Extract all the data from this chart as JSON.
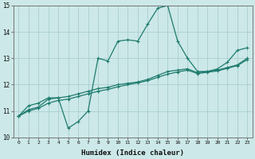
{
  "xlabel": "Humidex (Indice chaleur)",
  "background_color": "#cce8e8",
  "grid_color": "#aacece",
  "line_color": "#1e7b6e",
  "xlim": [
    -0.5,
    23.5
  ],
  "ylim": [
    10,
    15
  ],
  "xticks": [
    0,
    1,
    2,
    3,
    4,
    5,
    6,
    7,
    8,
    9,
    10,
    11,
    12,
    13,
    14,
    15,
    16,
    17,
    18,
    19,
    20,
    21,
    22,
    23
  ],
  "yticks": [
    10,
    11,
    12,
    13,
    14,
    15
  ],
  "curve1_x": [
    0,
    1,
    2,
    3,
    4,
    5,
    6,
    7,
    8,
    9,
    10,
    11,
    12,
    13,
    14,
    15,
    16,
    17,
    18,
    19,
    20,
    21,
    22,
    23
  ],
  "curve1_y": [
    10.8,
    11.2,
    11.3,
    11.5,
    11.5,
    10.35,
    10.6,
    11.0,
    13.0,
    12.9,
    13.65,
    13.7,
    13.65,
    14.3,
    14.9,
    15.0,
    13.65,
    13.0,
    12.5,
    12.5,
    12.6,
    12.85,
    13.3,
    13.4
  ],
  "curve2_x": [
    0,
    1,
    2,
    3,
    4,
    5,
    6,
    7,
    8,
    9,
    10,
    11,
    12,
    13,
    14,
    15,
    16,
    17,
    18,
    19,
    20,
    21,
    22,
    23
  ],
  "curve2_y": [
    10.8,
    11.05,
    11.15,
    11.45,
    11.5,
    11.55,
    11.65,
    11.75,
    11.85,
    11.9,
    12.0,
    12.05,
    12.1,
    12.2,
    12.35,
    12.5,
    12.55,
    12.6,
    12.45,
    12.5,
    12.55,
    12.65,
    12.75,
    13.0
  ],
  "curve3_x": [
    0,
    1,
    2,
    3,
    4,
    5,
    6,
    7,
    8,
    9,
    10,
    11,
    12,
    13,
    14,
    15,
    16,
    17,
    18,
    19,
    20,
    21,
    22,
    23
  ],
  "curve3_y": [
    10.8,
    11.0,
    11.1,
    11.3,
    11.4,
    11.45,
    11.55,
    11.65,
    11.75,
    11.82,
    11.92,
    12.0,
    12.07,
    12.15,
    12.28,
    12.4,
    12.48,
    12.55,
    12.42,
    12.47,
    12.52,
    12.62,
    12.72,
    12.95
  ]
}
